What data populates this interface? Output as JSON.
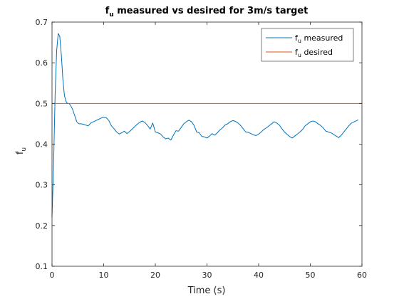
{
  "chart_data": {
    "type": "line",
    "title": "f_u measured vs desired for 3m/s target",
    "title_parts": {
      "base": "f",
      "sub": "u",
      "rest": " measured vs desired for 3m/s target"
    },
    "xlabel": "Time (s)",
    "ylabel": {
      "base": "f",
      "sub": "u"
    },
    "xlim": [
      0,
      60
    ],
    "ylim": [
      0.1,
      0.7
    ],
    "xticks": [
      0,
      10,
      20,
      30,
      40,
      50,
      60
    ],
    "yticks": [
      0.1,
      0.2,
      0.3,
      0.4,
      0.5,
      0.6,
      0.7
    ],
    "xtick_labels": [
      "0",
      "10",
      "20",
      "30",
      "40",
      "50",
      "60"
    ],
    "ytick_labels": [
      "0.1",
      "0.2",
      "0.3",
      "0.4",
      "0.5",
      "0.6",
      "0.7"
    ],
    "grid": false,
    "legend_position": "top-right",
    "series": [
      {
        "name": "f_u measured",
        "legend": {
          "base": "f",
          "sub": "u",
          "rest": " measured"
        },
        "color": "#0072BD",
        "x": [
          0,
          0.3,
          0.6,
          0.9,
          1.2,
          1.5,
          1.8,
          2.1,
          2.4,
          2.7,
          3.0,
          3.3,
          3.6,
          4.0,
          4.4,
          4.8,
          5.2,
          5.6,
          6.0,
          6.5,
          7.0,
          7.5,
          8.0,
          8.5,
          9.0,
          9.5,
          10.0,
          10.5,
          11.0,
          11.5,
          12.0,
          12.5,
          13.0,
          13.5,
          14.0,
          14.5,
          15.0,
          15.5,
          16.0,
          16.5,
          17.0,
          17.5,
          18.0,
          18.5,
          19.0,
          19.5,
          20.0,
          20.5,
          21.0,
          21.5,
          22.0,
          22.5,
          23.0,
          23.5,
          24.0,
          24.5,
          25.0,
          25.5,
          26.0,
          26.5,
          27.0,
          27.5,
          28.0,
          28.5,
          29.0,
          29.5,
          30.0,
          30.5,
          31.0,
          31.5,
          32.0,
          32.5,
          33.0,
          33.5,
          34.0,
          34.5,
          35.0,
          35.5,
          36.0,
          36.5,
          37.0,
          37.5,
          38.0,
          38.5,
          39.0,
          39.5,
          40.0,
          40.5,
          41.0,
          41.5,
          42.0,
          42.5,
          43.0,
          43.5,
          44.0,
          44.5,
          45.0,
          45.5,
          46.0,
          46.5,
          47.0,
          47.5,
          48.0,
          48.5,
          49.0,
          49.5,
          50.0,
          50.5,
          51.0,
          51.5,
          52.0,
          52.5,
          53.0,
          53.5,
          54.0,
          54.5,
          55.0,
          55.5,
          56.0,
          56.5,
          57.0,
          57.5,
          58.0,
          58.5,
          59.0,
          59.3
        ],
        "y": [
          0.22,
          0.35,
          0.52,
          0.63,
          0.672,
          0.665,
          0.62,
          0.56,
          0.52,
          0.505,
          0.5,
          0.5,
          0.495,
          0.485,
          0.47,
          0.455,
          0.45,
          0.45,
          0.449,
          0.447,
          0.445,
          0.452,
          0.455,
          0.458,
          0.461,
          0.464,
          0.466,
          0.465,
          0.458,
          0.445,
          0.438,
          0.43,
          0.425,
          0.428,
          0.432,
          0.426,
          0.431,
          0.437,
          0.443,
          0.449,
          0.454,
          0.457,
          0.453,
          0.446,
          0.437,
          0.452,
          0.43,
          0.428,
          0.425,
          0.418,
          0.413,
          0.415,
          0.41,
          0.422,
          0.433,
          0.432,
          0.441,
          0.45,
          0.455,
          0.459,
          0.455,
          0.446,
          0.43,
          0.428,
          0.419,
          0.418,
          0.415,
          0.42,
          0.426,
          0.422,
          0.428,
          0.435,
          0.44,
          0.447,
          0.45,
          0.455,
          0.458,
          0.456,
          0.452,
          0.446,
          0.438,
          0.43,
          0.429,
          0.426,
          0.423,
          0.421,
          0.425,
          0.43,
          0.436,
          0.44,
          0.445,
          0.45,
          0.455,
          0.452,
          0.447,
          0.438,
          0.43,
          0.424,
          0.419,
          0.415,
          0.42,
          0.425,
          0.43,
          0.436,
          0.445,
          0.45,
          0.455,
          0.457,
          0.455,
          0.45,
          0.446,
          0.44,
          0.432,
          0.43,
          0.428,
          0.424,
          0.42,
          0.416,
          0.422,
          0.43,
          0.438,
          0.446,
          0.452,
          0.455,
          0.458,
          0.46
        ]
      },
      {
        "name": "f_u desired",
        "legend": {
          "base": "f",
          "sub": "u",
          "rest": " desired"
        },
        "color": "#D95319",
        "x": [
          0,
          60
        ],
        "y": [
          0.5,
          0.5
        ]
      }
    ]
  }
}
